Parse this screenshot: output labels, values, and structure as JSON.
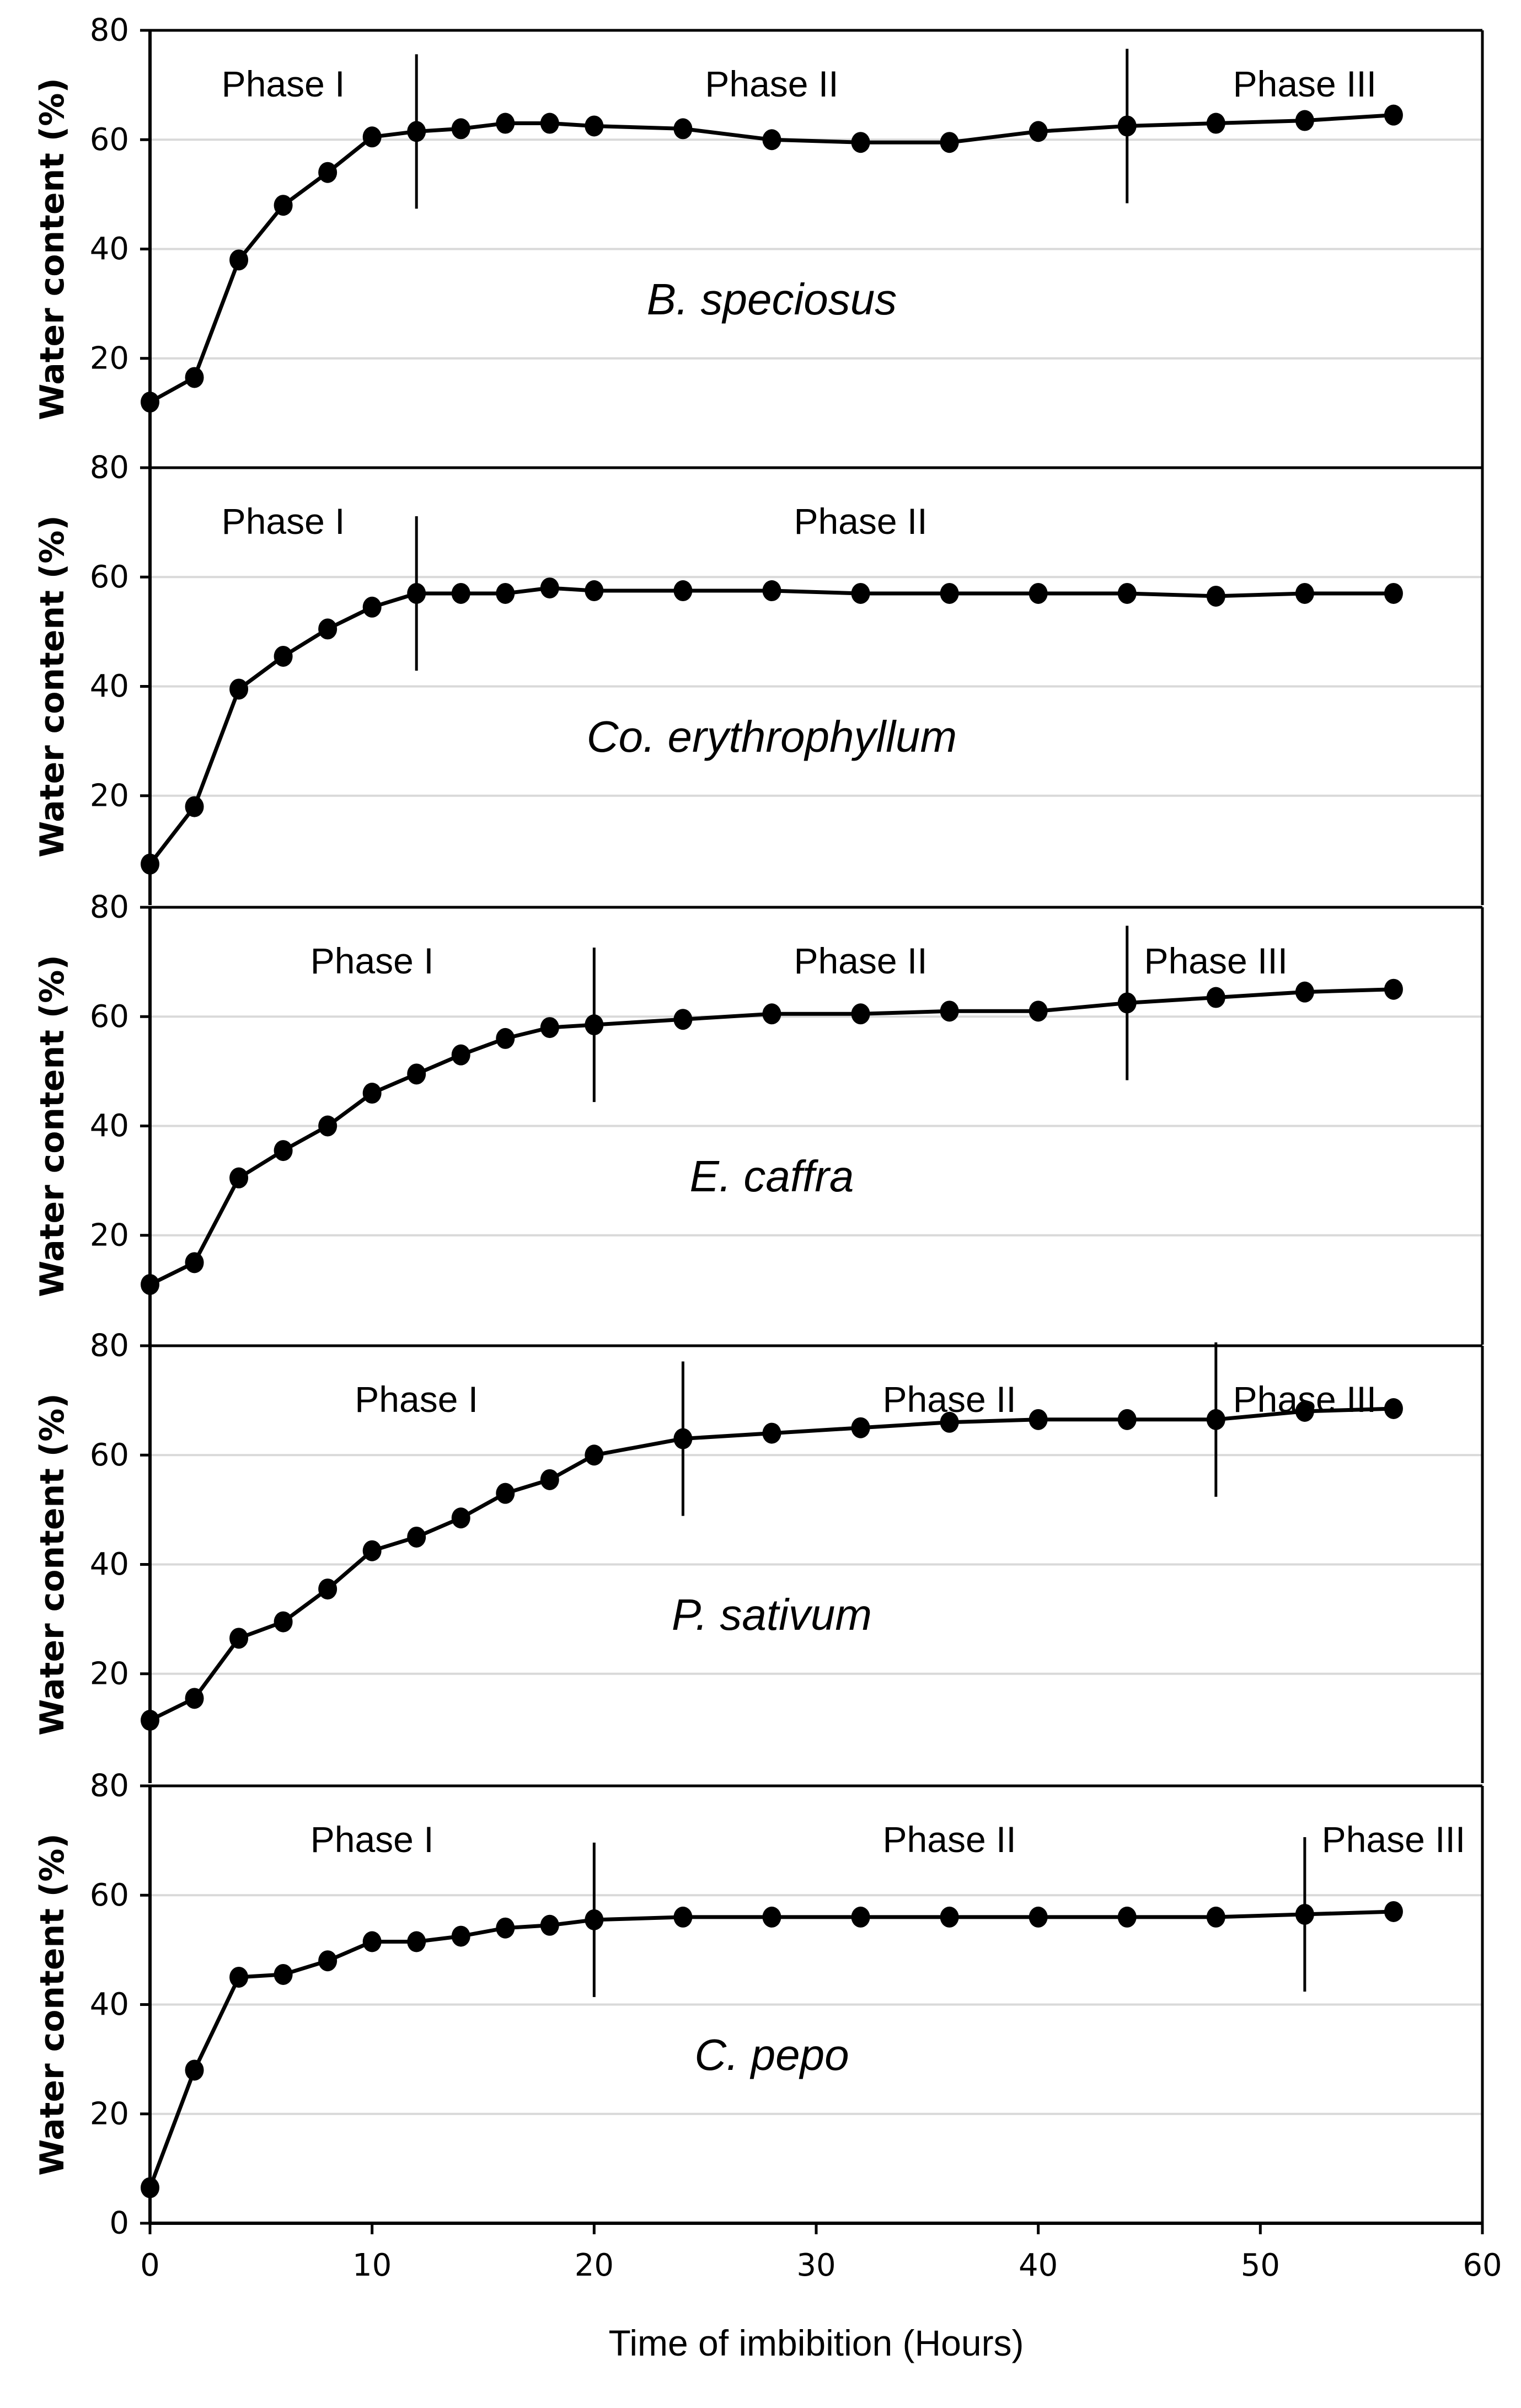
{
  "chart_data": {
    "type": "line",
    "xlabel": "Time of imbibition (Hours)",
    "xlim": [
      0,
      60
    ],
    "xticks": [
      "0",
      "10",
      "20",
      "30",
      "40",
      "50",
      "60"
    ],
    "x": [
      0,
      2,
      4,
      6,
      8,
      10,
      12,
      14,
      16,
      18,
      20,
      24,
      28,
      32,
      36,
      40,
      44,
      48,
      52,
      56
    ],
    "panels": [
      {
        "title": "B. speciosus",
        "ylabel": "Water content (%)",
        "ylim": [
          0,
          80
        ],
        "yticks": [
          "80",
          "60",
          "40",
          "20"
        ],
        "values": [
          12,
          16.5,
          38,
          48,
          54,
          60.5,
          61.5,
          62,
          63,
          63,
          62.5,
          62,
          60,
          59.5,
          59.5,
          61.5,
          62.5,
          63,
          63.5,
          64.5
        ],
        "phases": [
          {
            "label": "Phase I",
            "at": 6
          },
          {
            "label": "Phase II",
            "at": 28
          },
          {
            "label": "Phase III",
            "at": 52
          }
        ],
        "dividers": [
          12,
          44
        ]
      },
      {
        "title": "Co. erythrophyllum",
        "ylabel": "Water content (%)",
        "ylim": [
          0,
          80
        ],
        "yticks": [
          "80",
          "60",
          "40",
          "20"
        ],
        "values": [
          7.5,
          18,
          39.5,
          45.5,
          50.5,
          54.5,
          57,
          57,
          57,
          58,
          57.5,
          57.5,
          57.5,
          57,
          57,
          57,
          57,
          56.5,
          57,
          57
        ],
        "phases": [
          {
            "label": "Phase I",
            "at": 6
          },
          {
            "label": "Phase II",
            "at": 32
          }
        ],
        "dividers": [
          12
        ]
      },
      {
        "title": "E. caffra",
        "ylabel": "Water content (%)",
        "ylim": [
          0,
          80
        ],
        "yticks": [
          "80",
          "60",
          "40",
          "20"
        ],
        "values": [
          11,
          15,
          30.5,
          35.5,
          40,
          46,
          49.5,
          53,
          56,
          58,
          58.5,
          59.5,
          60.5,
          60.5,
          61,
          61,
          62.5,
          63.5,
          64.5,
          65
        ],
        "phases": [
          {
            "label": "Phase I",
            "at": 10
          },
          {
            "label": "Phase II",
            "at": 32
          },
          {
            "label": "Phase III",
            "at": 48
          }
        ],
        "dividers": [
          20,
          44
        ]
      },
      {
        "title": "P. sativum",
        "ylabel": "Water content (%)",
        "ylim": [
          0,
          80
        ],
        "yticks": [
          "80",
          "60",
          "40",
          "20"
        ],
        "values": [
          11.5,
          15.5,
          26.5,
          29.5,
          35.5,
          42.5,
          45,
          48.5,
          53,
          55.5,
          60,
          63,
          64,
          65,
          66,
          66.5,
          66.5,
          66.5,
          68,
          68.5
        ],
        "phases": [
          {
            "label": "Phase I",
            "at": 12
          },
          {
            "label": "Phase II",
            "at": 36
          },
          {
            "label": "Phase III",
            "at": 52
          }
        ],
        "dividers": [
          24,
          48
        ]
      },
      {
        "title": "C. pepo",
        "ylabel": "Water content (%)",
        "ylim": [
          0,
          80
        ],
        "yticks": [
          "80",
          "60",
          "40",
          "20",
          "0"
        ],
        "values": [
          6.5,
          28,
          45,
          45.5,
          48,
          51.5,
          51.5,
          52.5,
          54,
          54.5,
          55.5,
          56,
          56,
          56,
          56,
          56,
          56,
          56,
          56.5,
          57
        ],
        "phases": [
          {
            "label": "Phase I",
            "at": 10
          },
          {
            "label": "Phase II",
            "at": 36
          },
          {
            "label": "Phase III",
            "at": 56
          }
        ],
        "dividers": [
          20,
          52
        ]
      }
    ]
  }
}
